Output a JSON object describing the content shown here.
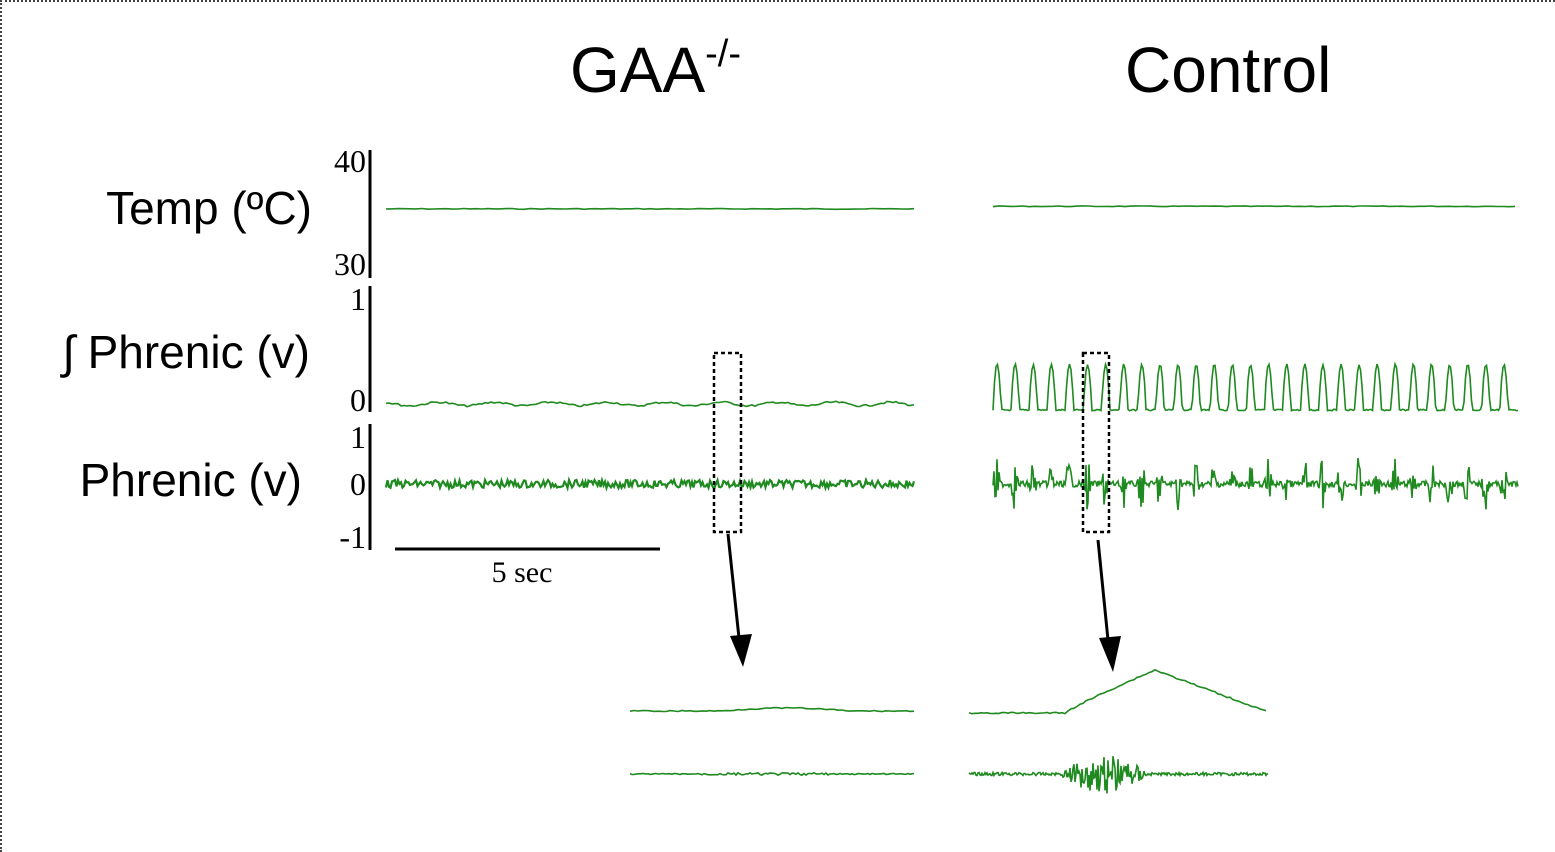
{
  "chart_data": {
    "type": "line",
    "panels": [
      {
        "name": "GAA-/-",
        "title_main": "GAA",
        "title_sup": "-/-"
      },
      {
        "name": "Control",
        "title_main": "Control",
        "title_sup": ""
      }
    ],
    "rows": [
      {
        "label": "Temp (ºC)",
        "ticks": [
          "40",
          "30"
        ],
        "ylim": [
          30,
          40
        ]
      },
      {
        "label": "∫ Phrenic (v)",
        "ticks": [
          "1",
          "0"
        ],
        "ylim": [
          0,
          1
        ]
      },
      {
        "label": "Phrenic (v)",
        "ticks": [
          "1",
          "0",
          "-1"
        ],
        "ylim": [
          -1,
          1
        ]
      }
    ],
    "series": {
      "temp_gaa": 35.4,
      "temp_control": 35.6,
      "integrated_gaa_level": 0.05,
      "integrated_control_peak": 0.38,
      "control_bursts": 29
    },
    "scale_bar": {
      "label": "5 sec"
    },
    "colors": {
      "trace": "#1f8a1f"
    }
  }
}
